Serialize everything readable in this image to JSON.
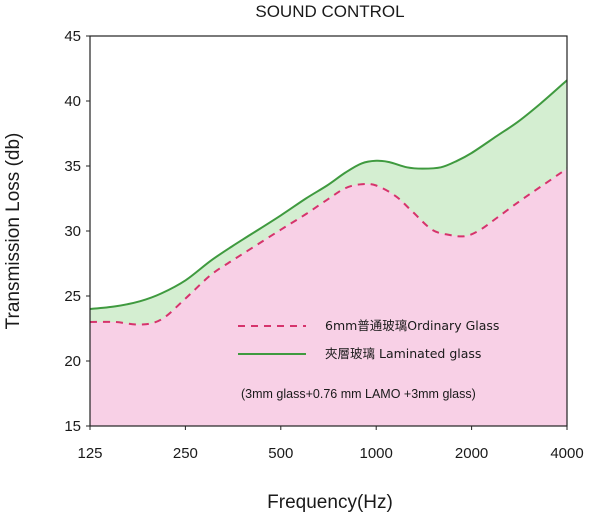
{
  "chart_data": {
    "type": "area",
    "title": "SOUND CONTROL",
    "xlabel": "Frequency(Hz)",
    "ylabel": "Transmission Loss (db)",
    "x_scale": "log2",
    "x_ticks": [
      125,
      250,
      500,
      1000,
      2000,
      4000
    ],
    "xlim": [
      125,
      4000
    ],
    "ylim": [
      15,
      45
    ],
    "y_ticks": [
      15,
      20,
      25,
      30,
      35,
      40,
      45
    ],
    "grid": false,
    "legend_position": "bottom-right",
    "series": [
      {
        "name": "6mm普通玻璃Ordinary Glass",
        "line_style": "dashed",
        "line_color": "#d6336c",
        "fill_color": "#f8d0e6",
        "x": [
          125,
          150,
          180,
          210,
          250,
          300,
          350,
          400,
          500,
          600,
          700,
          800,
          900,
          1000,
          1150,
          1300,
          1500,
          1700,
          1900,
          2100,
          2400,
          2800,
          3300,
          4000
        ],
        "y": [
          23.0,
          23.0,
          22.8,
          23.2,
          24.8,
          26.6,
          27.7,
          28.6,
          30.1,
          31.3,
          32.4,
          33.3,
          33.6,
          33.5,
          32.7,
          31.5,
          30.1,
          29.7,
          29.6,
          30.0,
          31.0,
          32.2,
          33.4,
          34.8
        ]
      },
      {
        "name": "夾層玻璃 Laminated glass",
        "line_style": "solid",
        "line_color": "#3f9a3f",
        "fill_color": "#d4eed1",
        "x": [
          125,
          150,
          180,
          210,
          250,
          300,
          350,
          400,
          500,
          600,
          700,
          800,
          900,
          1000,
          1100,
          1250,
          1400,
          1600,
          1800,
          2000,
          2400,
          2800,
          3300,
          4000
        ],
        "y": [
          24.0,
          24.2,
          24.6,
          25.2,
          26.2,
          27.7,
          28.8,
          29.7,
          31.2,
          32.5,
          33.5,
          34.5,
          35.2,
          35.4,
          35.3,
          34.9,
          34.8,
          34.9,
          35.4,
          36.0,
          37.3,
          38.4,
          39.8,
          41.6
        ]
      }
    ],
    "annotation": "(3mm glass+0.76 mm LAMO +3mm glass)"
  }
}
